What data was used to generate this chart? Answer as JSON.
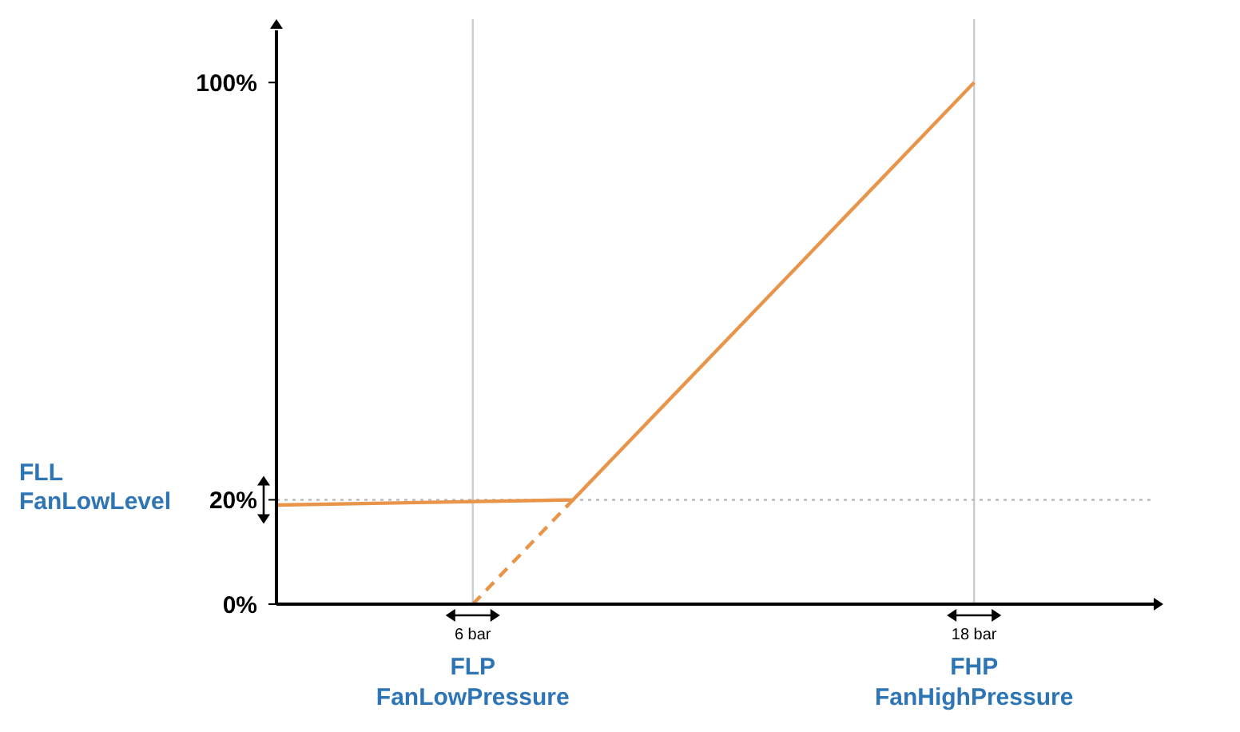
{
  "chart_data": {
    "type": "line",
    "xlim": [
      1.3,
      22.3
    ],
    "ylim": [
      0,
      110
    ],
    "xticks": [
      {
        "value": 6,
        "label": "6 bar"
      },
      {
        "value": 18,
        "label": "18 bar"
      }
    ],
    "yticks": [
      {
        "value": 0,
        "label": "0%"
      },
      {
        "value": 20,
        "label": "20%"
      },
      {
        "value": 100,
        "label": "100%"
      }
    ],
    "series": [
      {
        "color": "#e8954a",
        "x": [
          1.3,
          8.4,
          18
        ],
        "values": [
          19,
          20,
          100
        ],
        "line_style": "solid"
      },
      {
        "color": "#e8954a",
        "x": [
          6,
          8.4
        ],
        "values": [
          0,
          20
        ],
        "line_style": "dashed"
      }
    ],
    "ref_lines": [
      {
        "axis": "x",
        "value": 6,
        "color": "#cccccc",
        "line_style": "solid"
      },
      {
        "axis": "x",
        "value": 18,
        "color": "#cccccc",
        "line_style": "solid"
      },
      {
        "axis": "y",
        "value": 20,
        "color": "#bbbbbb",
        "line_style": "dotted"
      }
    ],
    "annotations": [
      "FLL",
      "FanLowLevel",
      "FLP",
      "FanLowPressure",
      "FHP",
      "FanHighPressure"
    ],
    "grid": false,
    "marker": "none"
  }
}
